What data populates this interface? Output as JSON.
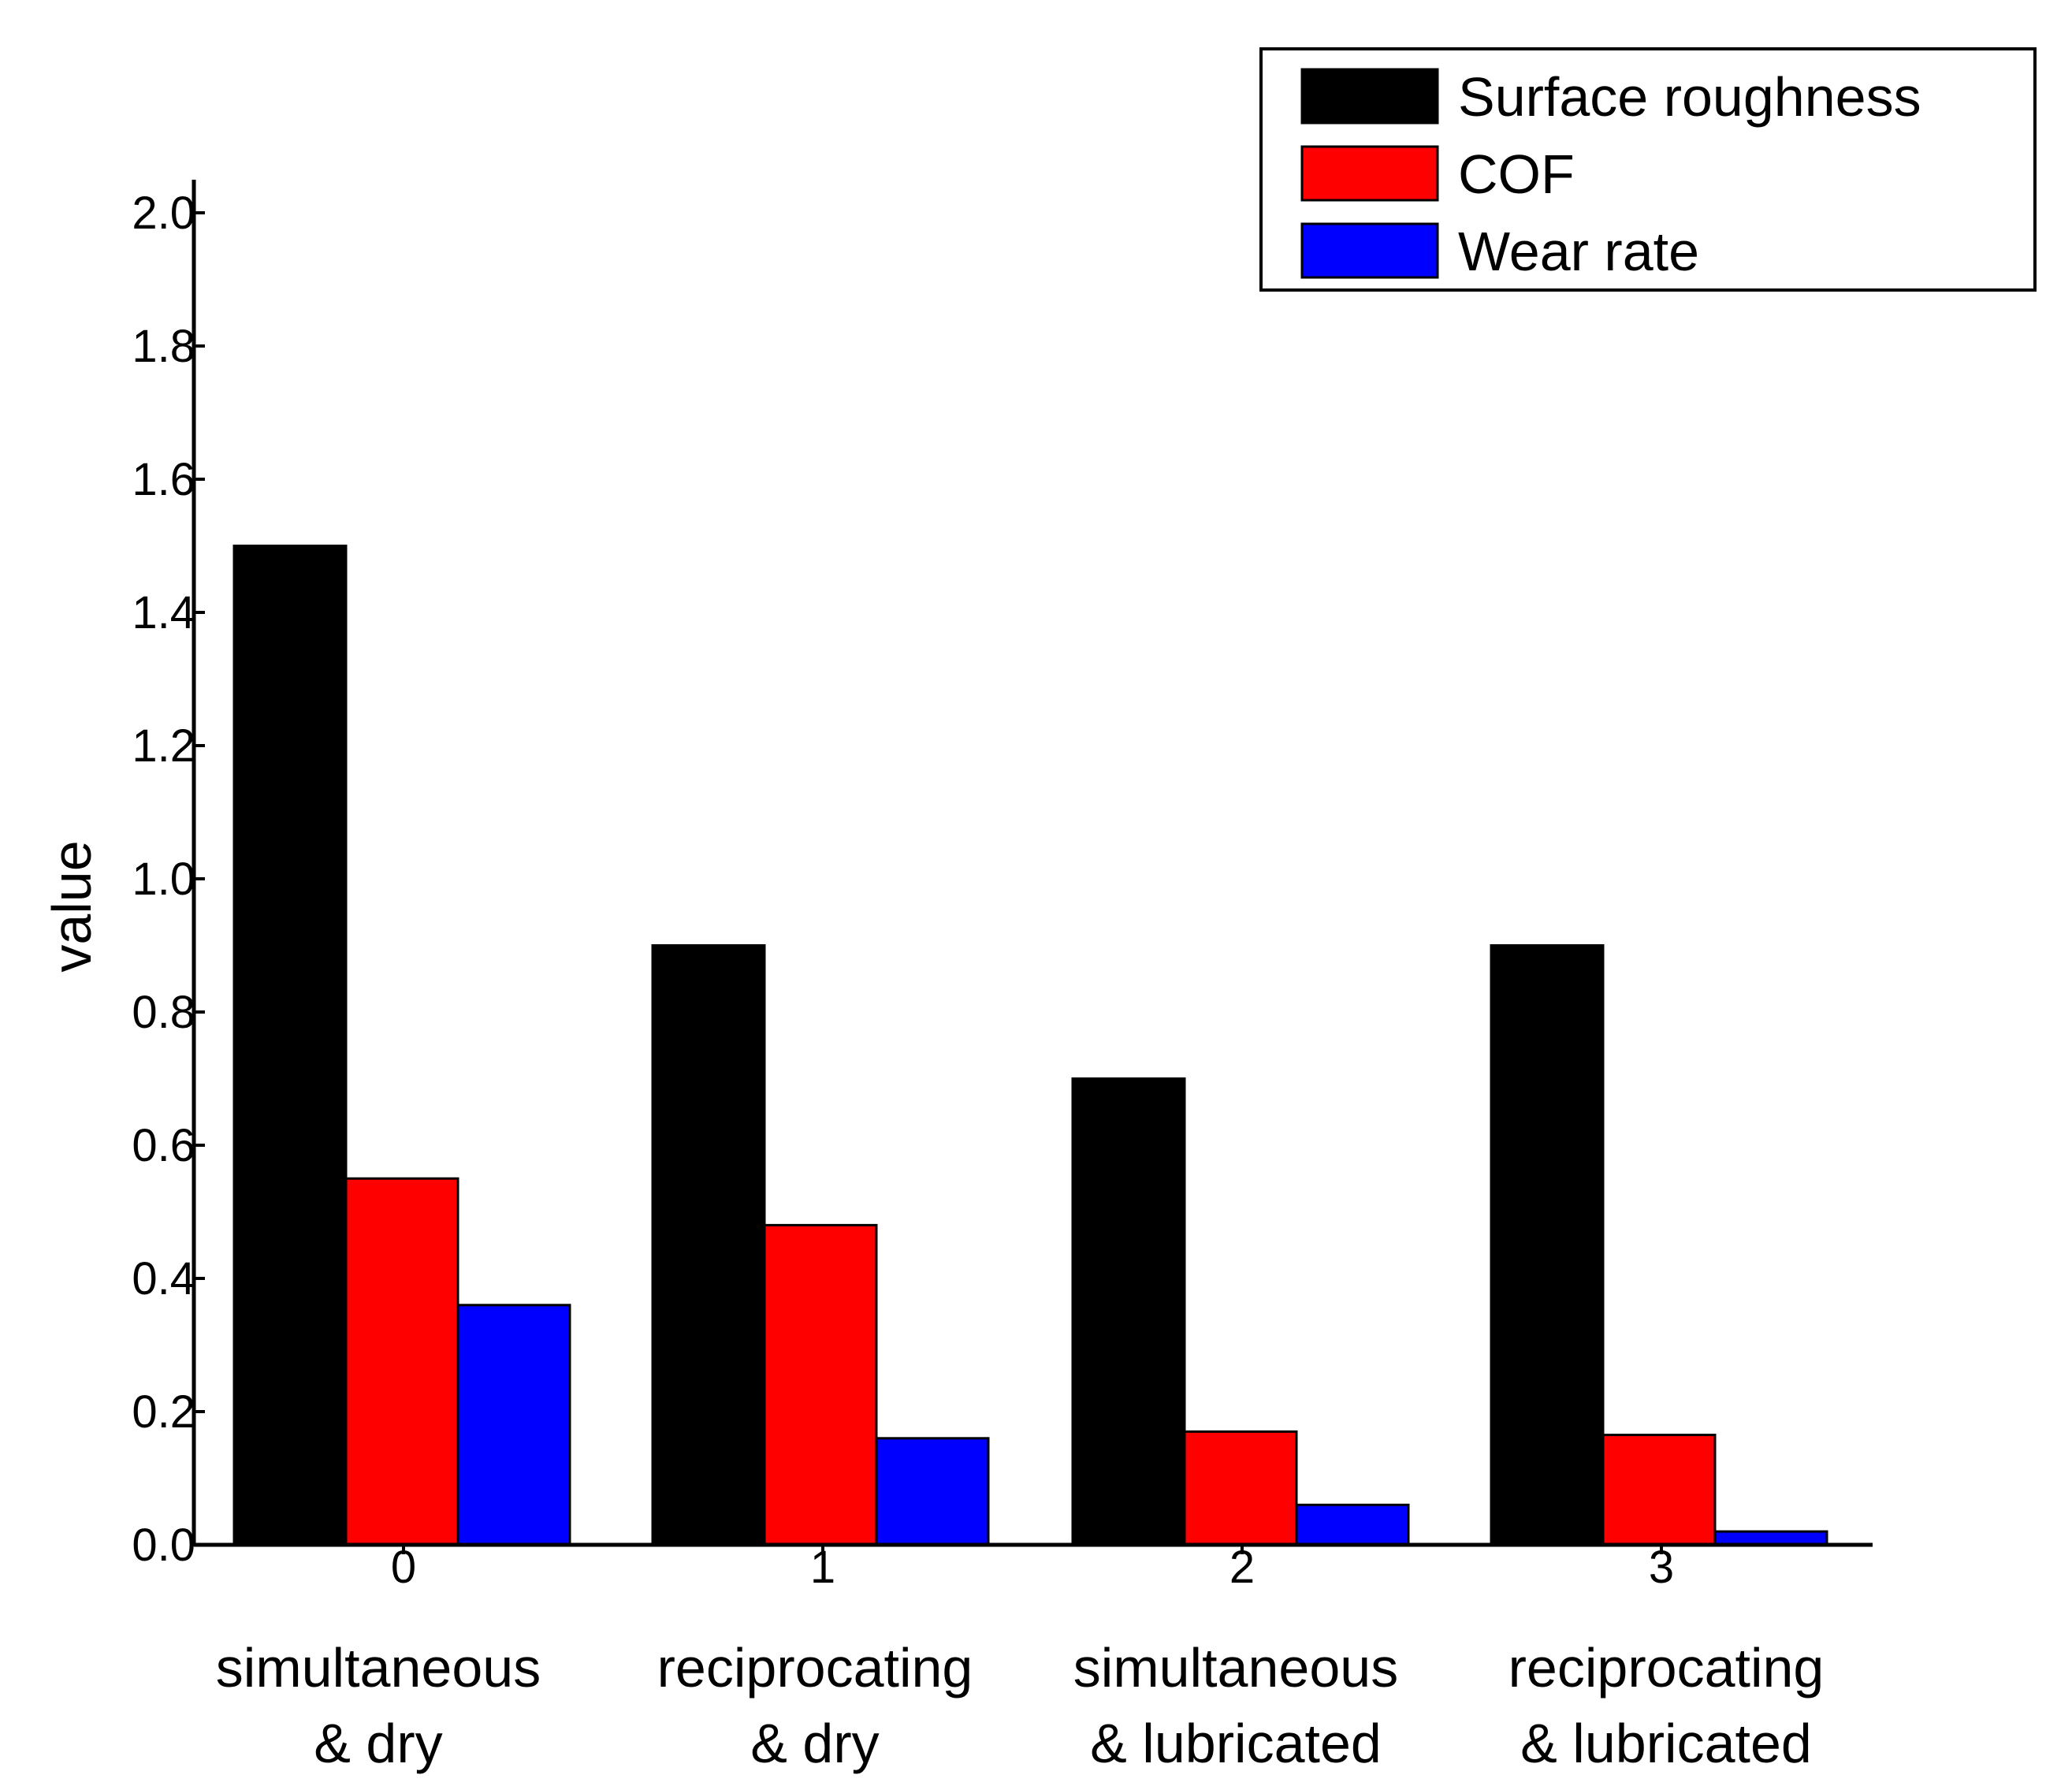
{
  "chart_data": {
    "type": "bar",
    "title": "",
    "xlabel": "",
    "ylabel": "value",
    "ylim": [
      0,
      2.0
    ],
    "yticks": [
      "0.0",
      "0.2",
      "0.4",
      "0.6",
      "0.8",
      "1.0",
      "1.2",
      "1.4",
      "1.6",
      "1.8",
      "2.0"
    ],
    "categories": [
      "0",
      "1",
      "2",
      "3"
    ],
    "category_descriptions": [
      [
        "simultaneous",
        "& dry"
      ],
      [
        "reciprocating",
        "& dry"
      ],
      [
        "simultaneous",
        "& lubricated"
      ],
      [
        "reciprocating",
        "& lubricated"
      ]
    ],
    "series": [
      {
        "name": "Surface roughness",
        "color": "#000000",
        "values": [
          1.5,
          0.9,
          0.7,
          0.9
        ]
      },
      {
        "name": "COF",
        "color": "#ff0000",
        "values": [
          0.55,
          0.48,
          0.17,
          0.165
        ]
      },
      {
        "name": "Wear rate",
        "color": "#0000ff",
        "values": [
          0.36,
          0.16,
          0.06,
          0.02
        ]
      }
    ],
    "legend_position": "top-right",
    "grid": false
  }
}
